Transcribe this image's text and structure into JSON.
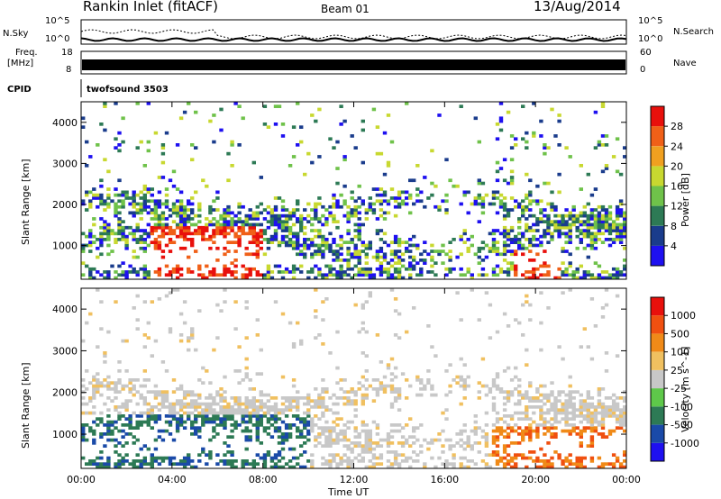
{
  "header": {
    "title": "Rankin Inlet (fitACF)",
    "beam": "Beam 01",
    "date": "13/Aug/2014"
  },
  "noise_panel": {
    "left_label": "N.Sky",
    "right_label": "N.Search",
    "left_ticks": [
      "10^5",
      "10^0"
    ],
    "right_ticks": [
      "10^5",
      "10^0"
    ]
  },
  "freq_panel": {
    "left_label": "Freq.",
    "left_unit": "[MHz]",
    "right_label": "Nave",
    "left_ticks": [
      "18",
      "8"
    ],
    "right_ticks": [
      "60",
      "0"
    ]
  },
  "cpid_panel": {
    "label": "CPID",
    "value": "twofsound 3503"
  },
  "chart_data": [
    {
      "type": "heatmap",
      "parameter": "Power",
      "ylabel": "Slant Range [km]",
      "ylim": [
        180,
        4500
      ],
      "yticks": [
        "1000",
        "2000",
        "3000",
        "4000"
      ],
      "xlim": [
        0,
        24
      ],
      "colorbar": {
        "title": "Power [dB]",
        "levels": [
          "28",
          "24",
          "20",
          "16",
          "12",
          "8",
          "4"
        ],
        "colors": [
          "#1e10f0",
          "#1a3c8c",
          "#2d7a55",
          "#6fc24a",
          "#c8d830",
          "#f0a020",
          "#f06018",
          "#e8100c"
        ]
      }
    },
    {
      "type": "heatmap",
      "parameter": "Velocity",
      "ylabel": "Slant Range [km]",
      "ylim": [
        180,
        4500
      ],
      "yticks": [
        "1000",
        "2000",
        "3000",
        "4000"
      ],
      "xlim": [
        0,
        24
      ],
      "xticks": [
        "00:00",
        "04:00",
        "08:00",
        "12:00",
        "16:00",
        "20:00",
        "00:00"
      ],
      "xlabel": "Time UT",
      "colorbar": {
        "title": "Velocity [m s^-1]",
        "levels": [
          "1000",
          "500",
          "100",
          "25",
          "-25",
          "-100",
          "-500",
          "-1000"
        ],
        "colors": [
          "#1e10f0",
          "#1a4aa8",
          "#2d7a55",
          "#5ec84a",
          "#c8c8c8",
          "#f0c060",
          "#f08a18",
          "#f05010",
          "#e8100c"
        ]
      }
    }
  ]
}
